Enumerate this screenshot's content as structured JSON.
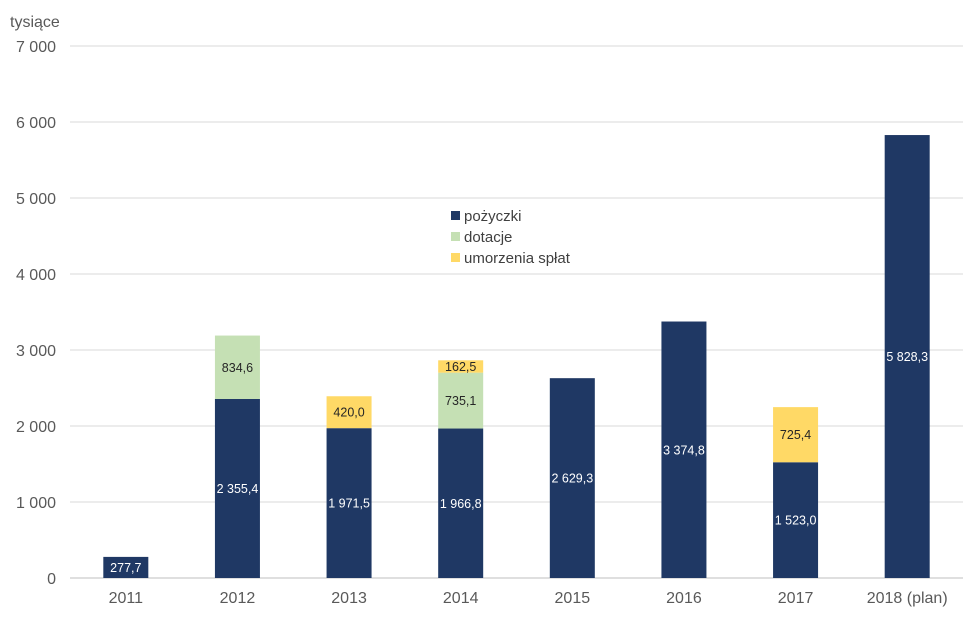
{
  "chart_data": {
    "type": "bar",
    "stacked": true,
    "y_unit": "tysiące",
    "categories": [
      "2011",
      "2012",
      "2013",
      "2014",
      "2015",
      "2016",
      "2017",
      "2018 (plan)"
    ],
    "series": [
      {
        "name": "pożyczki",
        "color": "#1f3864",
        "label_color": "#ffffff",
        "values": [
          277.7,
          2355.4,
          1971.5,
          1966.8,
          2629.3,
          3374.8,
          1523.0,
          5828.3
        ],
        "labels": [
          "277,7",
          "2 355,4",
          "1 971,5",
          "1 966,8",
          "2 629,3",
          "3 374,8",
          "1 523,0",
          "5 828,3"
        ]
      },
      {
        "name": "dotacje",
        "color": "#c5e0b4",
        "label_color": "#262626",
        "values": [
          0,
          834.6,
          0,
          735.1,
          0,
          0,
          0,
          0
        ],
        "labels": [
          "",
          "834,6",
          "",
          "735,1",
          "",
          "",
          "",
          ""
        ]
      },
      {
        "name": "umorzenia spłat",
        "color": "#ffd966",
        "label_color": "#262626",
        "values": [
          0,
          0,
          420.0,
          162.5,
          0,
          0,
          725.4,
          0
        ],
        "labels": [
          "",
          "",
          "420,0",
          "162,5",
          "",
          "",
          "725,4",
          ""
        ]
      }
    ],
    "ylim": [
      0,
      7000
    ],
    "yticks": [
      0,
      1000,
      2000,
      3000,
      4000,
      5000,
      6000,
      7000
    ],
    "ytick_labels": [
      "0",
      "1 000",
      "2 000",
      "3 000",
      "4 000",
      "5 000",
      "6 000",
      "7 000"
    ],
    "grid": true,
    "legend_position": "center-top"
  }
}
